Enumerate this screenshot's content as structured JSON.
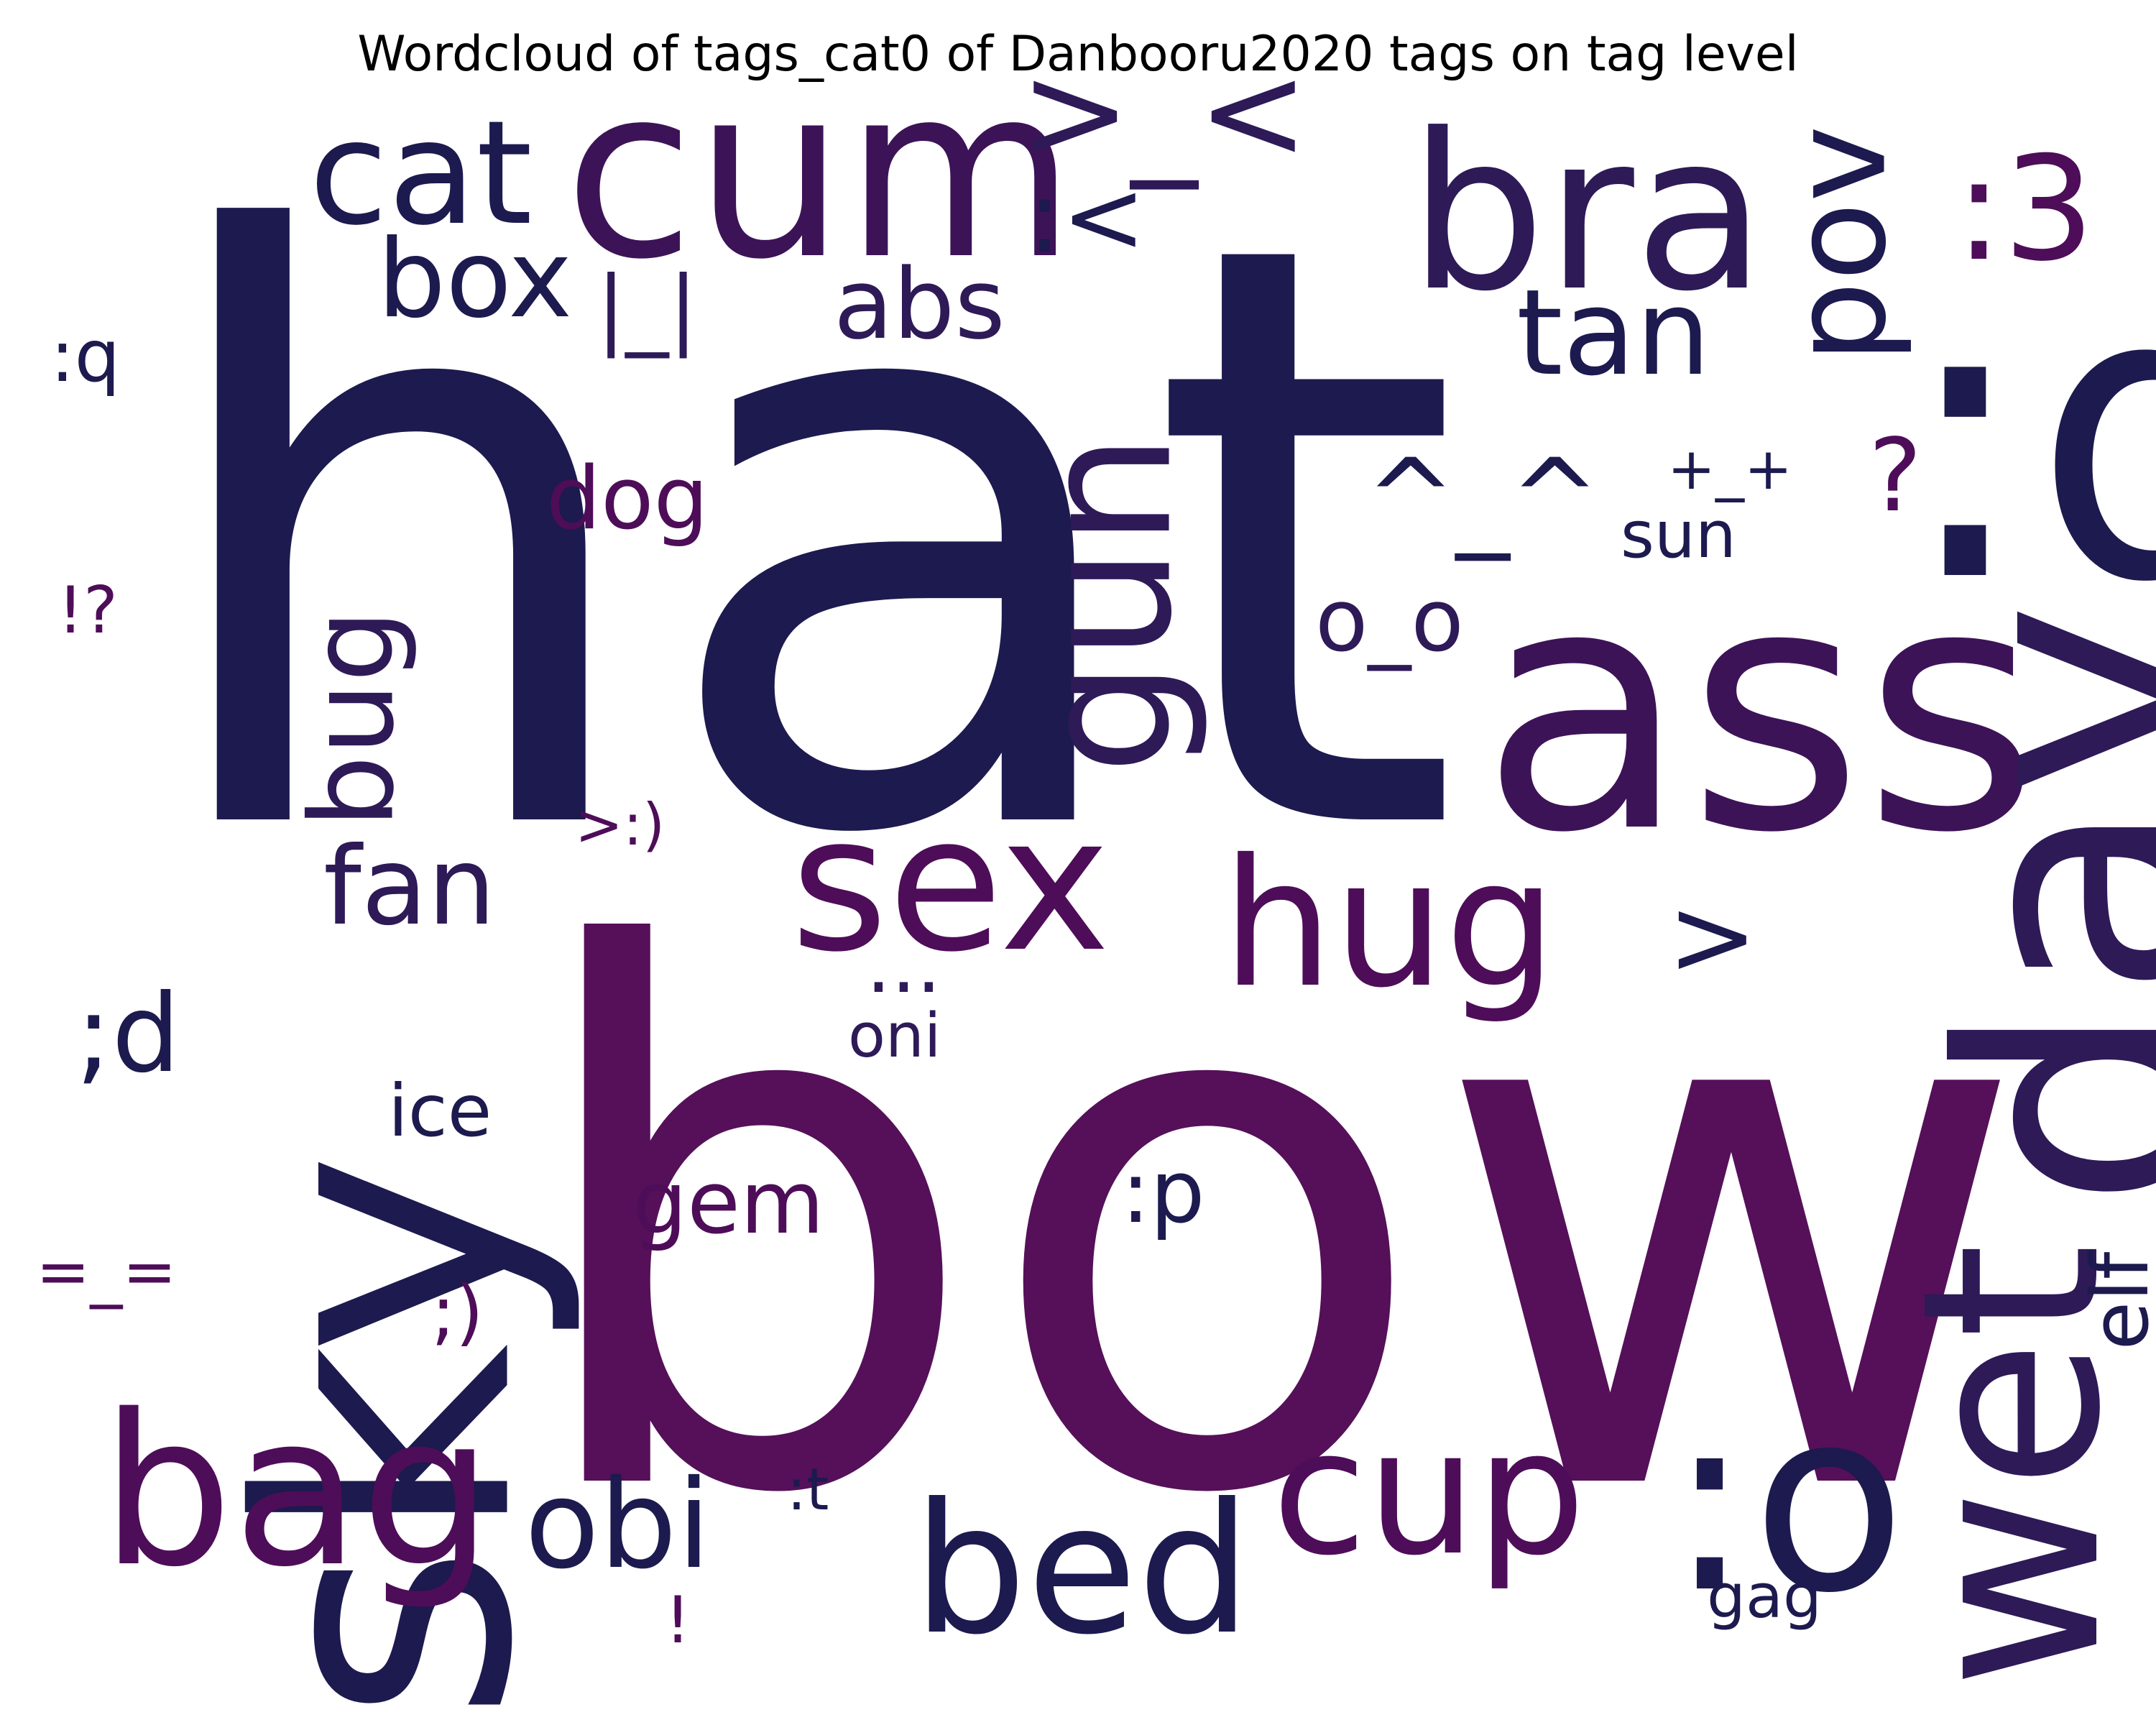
{
  "title": "Wordcloud of tags_cat0 of Danbooru2020 tags on tag level",
  "palette": {
    "navy": "#1c1a4e",
    "indigo": "#2d1a57",
    "purple": "#3d1357",
    "plum": "#4e0d58",
    "magenta": "#551059"
  },
  "words": [
    {
      "text": "hat",
      "color": "navy"
    },
    {
      "text": "bow",
      "color": "magenta"
    },
    {
      "text": "ass",
      "color": "purple"
    },
    {
      "text": "sky",
      "color": "navy"
    },
    {
      "text": "cum",
      "color": "purple"
    },
    {
      "text": "bra",
      "color": "indigo"
    },
    {
      "text": ":d",
      "color": "navy"
    },
    {
      "text": "day",
      "color": "indigo"
    },
    {
      "text": "wet",
      "color": "indigo"
    },
    {
      "text": ":o",
      "color": "navy"
    },
    {
      "text": "bag",
      "color": "plum"
    },
    {
      "text": "sex",
      "color": "plum"
    },
    {
      "text": "hug",
      "color": "plum"
    },
    {
      "text": "gun",
      "color": "indigo"
    },
    {
      "text": "bed",
      "color": "navy"
    },
    {
      "text": "cup",
      "color": "plum"
    },
    {
      "text": "cat",
      "color": "navy"
    },
    {
      "text": ">_<",
      "color": "indigo"
    },
    {
      "text": ":3",
      "color": "plum"
    },
    {
      "text": "pov",
      "color": "navy"
    },
    {
      "text": "tan",
      "color": "navy"
    },
    {
      "text": "obi",
      "color": "navy"
    },
    {
      "text": "box",
      "color": "navy"
    },
    {
      "text": "abs",
      "color": "indigo"
    },
    {
      "text": "bug",
      "color": "indigo"
    },
    {
      "text": "fan",
      "color": "indigo"
    },
    {
      "text": ";d",
      "color": "navy"
    },
    {
      "text": ":<",
      "color": "navy"
    },
    {
      "text": "^_^",
      "color": "navy"
    },
    {
      "text": "|_|",
      "color": "indigo"
    },
    {
      "text": "dog",
      "color": "plum"
    },
    {
      "text": "o_o",
      "color": "indigo"
    },
    {
      "text": "elf",
      "color": "navy"
    },
    {
      "text": "gem",
      "color": "plum"
    },
    {
      "text": ":p",
      "color": "navy"
    },
    {
      "text": ">",
      "color": "navy"
    },
    {
      "text": "ice",
      "color": "navy"
    },
    {
      "text": ":q",
      "color": "navy"
    },
    {
      "text": "sun",
      "color": "navy"
    },
    {
      "text": "?",
      "color": "plum"
    },
    {
      "text": "+_+",
      "color": "navy"
    },
    {
      "text": "oni",
      "color": "indigo"
    },
    {
      "text": "...",
      "color": "indigo"
    },
    {
      "text": "=_=",
      "color": "plum"
    },
    {
      "text": "!?",
      "color": "plum"
    },
    {
      "text": ">:)",
      "color": "plum"
    },
    {
      "text": ";)",
      "color": "plum"
    },
    {
      "text": "gag",
      "color": "navy"
    },
    {
      "text": ":t",
      "color": "navy"
    },
    {
      "text": "!",
      "color": "plum"
    }
  ]
}
